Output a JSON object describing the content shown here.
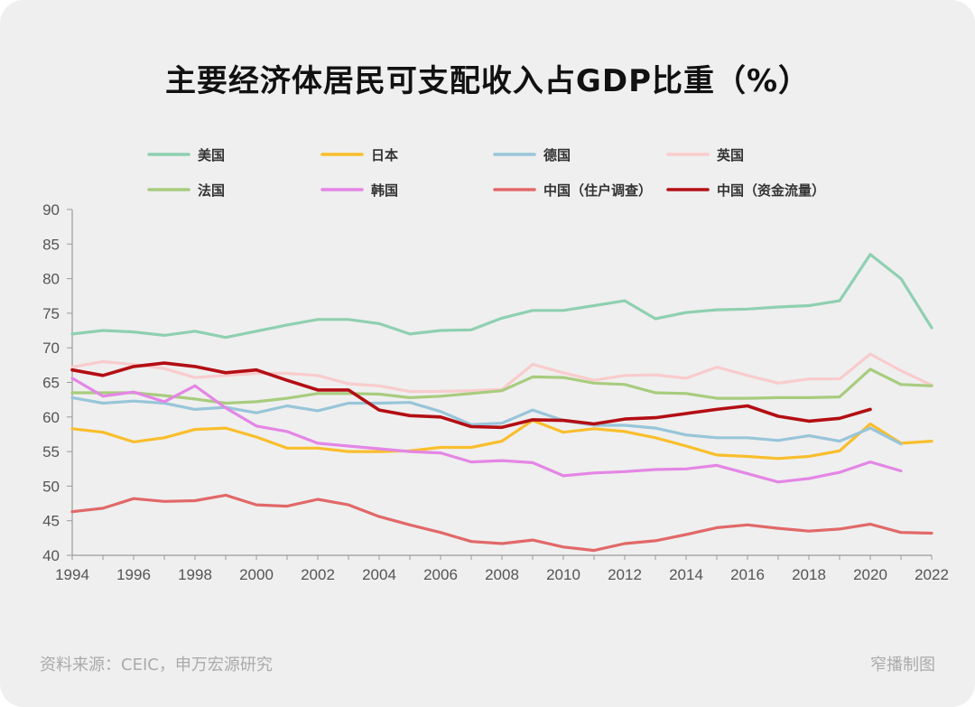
{
  "title": "主要经济体居民可支配收入占GDP比重（%）",
  "source": "资料来源：CEIC，申万宏源研究",
  "brand": "窄播制图",
  "chart_data": {
    "type": "line",
    "title": "主要经济体居民可支配收入占GDP比重（%）",
    "xlabel": "",
    "ylabel": "",
    "xlim": [
      1994,
      2022
    ],
    "ylim": [
      40,
      90
    ],
    "yticks": [
      40,
      45,
      50,
      55,
      60,
      65,
      70,
      75,
      80,
      85,
      90
    ],
    "xticks": [
      1994,
      1996,
      1998,
      2000,
      2002,
      2004,
      2006,
      2008,
      2010,
      2012,
      2014,
      2016,
      2018,
      2020,
      2022
    ],
    "grid": false,
    "legend": "top",
    "x": [
      1994,
      1995,
      1996,
      1997,
      1998,
      1999,
      2000,
      2001,
      2002,
      2003,
      2004,
      2005,
      2006,
      2007,
      2008,
      2009,
      2010,
      2011,
      2012,
      2013,
      2014,
      2015,
      2016,
      2017,
      2018,
      2019,
      2020,
      2021,
      2022
    ],
    "series": [
      {
        "name": "美国",
        "color": "#8fd0b0",
        "values": [
          72.0,
          72.5,
          72.3,
          71.8,
          72.4,
          71.5,
          72.4,
          73.3,
          74.1,
          74.1,
          73.5,
          72.0,
          72.5,
          72.6,
          74.3,
          75.4,
          75.4,
          76.1,
          76.8,
          74.2,
          75.1,
          75.5,
          75.6,
          75.9,
          76.1,
          76.8,
          83.5,
          80.0,
          72.9
        ]
      },
      {
        "name": "日本",
        "color": "#f9be2c",
        "values": [
          58.3,
          57.8,
          56.4,
          57.0,
          58.2,
          58.4,
          57.1,
          55.5,
          55.5,
          55.0,
          55.0,
          55.1,
          55.6,
          55.6,
          56.5,
          59.5,
          57.8,
          58.3,
          57.9,
          57.0,
          55.8,
          54.5,
          54.3,
          54.0,
          54.3,
          55.1,
          59.0,
          56.2,
          56.5
        ]
      },
      {
        "name": "德国",
        "color": "#98c5d9",
        "values": [
          62.8,
          62.0,
          62.3,
          62.0,
          61.1,
          61.4,
          60.6,
          61.6,
          60.9,
          62.0,
          62.0,
          62.1,
          60.8,
          58.9,
          59.1,
          61.0,
          59.5,
          58.8,
          58.8,
          58.4,
          57.4,
          57.0,
          57.0,
          56.6,
          57.3,
          56.5,
          58.4,
          56.1,
          null
        ]
      },
      {
        "name": "英国",
        "color": "#f9cccc",
        "values": [
          67.2,
          68.0,
          67.6,
          67.0,
          65.7,
          66.0,
          66.3,
          66.3,
          66.0,
          64.8,
          64.5,
          63.7,
          63.7,
          63.8,
          64.0,
          67.6,
          66.4,
          65.3,
          66.0,
          66.1,
          65.6,
          67.2,
          66.0,
          64.9,
          65.5,
          65.5,
          69.1,
          66.7,
          64.6
        ]
      },
      {
        "name": "法国",
        "color": "#a8cc7e",
        "values": [
          63.5,
          63.5,
          63.5,
          63.1,
          62.6,
          62.0,
          62.2,
          62.7,
          63.4,
          63.4,
          63.3,
          62.8,
          63.0,
          63.4,
          63.8,
          65.8,
          65.7,
          64.9,
          64.7,
          63.5,
          63.4,
          62.7,
          62.7,
          62.8,
          62.8,
          62.9,
          66.9,
          64.7,
          64.5
        ]
      },
      {
        "name": "韩国",
        "color": "#e486e5",
        "values": [
          65.6,
          63.0,
          63.6,
          62.2,
          64.5,
          61.3,
          58.7,
          57.9,
          56.2,
          55.8,
          55.4,
          55.0,
          54.8,
          53.5,
          53.7,
          53.4,
          51.5,
          51.9,
          52.1,
          52.4,
          52.5,
          53.0,
          51.8,
          50.6,
          51.1,
          52.0,
          53.5,
          52.2,
          null
        ]
      },
      {
        "name": "中国（住户调查）",
        "color": "#e26868",
        "values": [
          46.3,
          46.8,
          48.2,
          47.8,
          47.9,
          48.7,
          47.3,
          47.1,
          48.1,
          47.3,
          45.6,
          44.4,
          43.3,
          42.0,
          41.7,
          42.2,
          41.2,
          40.7,
          41.7,
          42.1,
          43.0,
          44.0,
          44.4,
          43.9,
          43.5,
          43.8,
          44.5,
          43.3,
          43.2
        ]
      },
      {
        "name": "中国（资金流量）",
        "color": "#b30e14",
        "values": [
          66.8,
          66.0,
          67.3,
          67.8,
          67.3,
          66.4,
          66.8,
          65.3,
          63.9,
          63.9,
          61.0,
          60.2,
          60.0,
          58.6,
          58.5,
          59.6,
          59.5,
          59.0,
          59.7,
          59.9,
          60.5,
          61.1,
          61.6,
          60.1,
          59.4,
          59.8,
          61.1,
          null,
          null
        ]
      }
    ]
  }
}
